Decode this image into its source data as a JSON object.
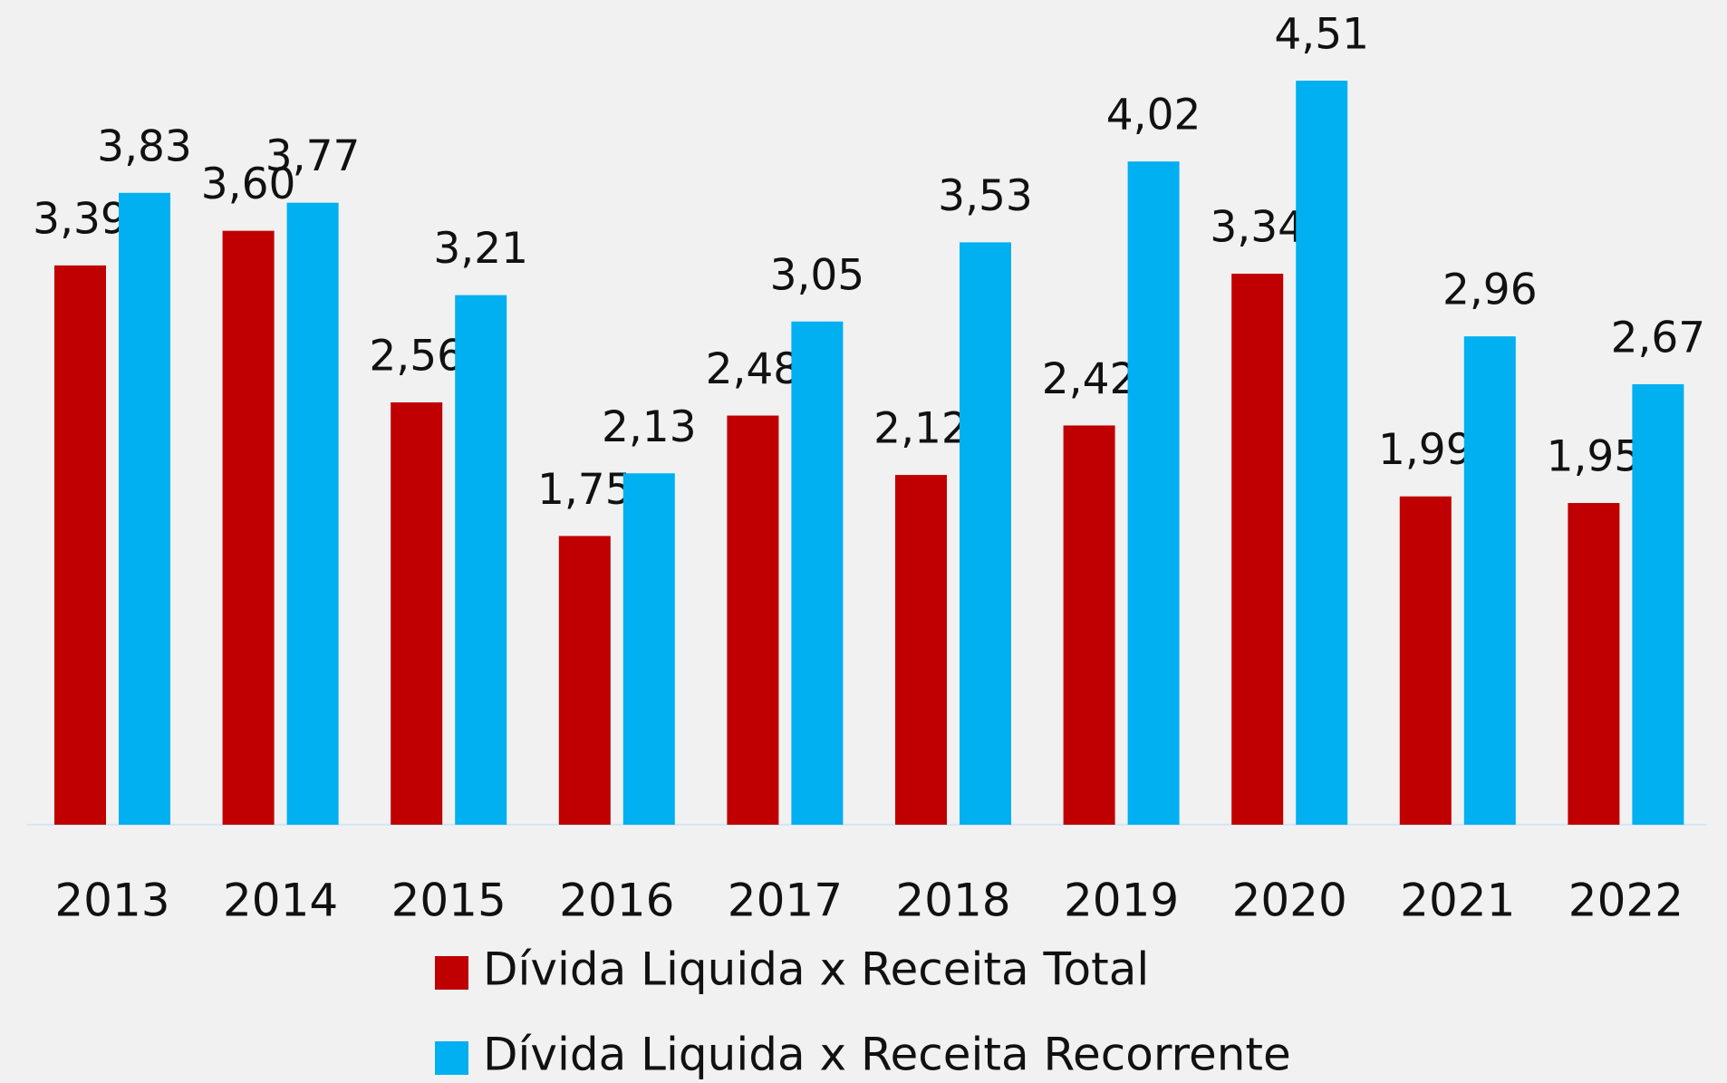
{
  "chart_data": {
    "type": "bar",
    "categories": [
      "2013",
      "2014",
      "2015",
      "2016",
      "2017",
      "2018",
      "2019",
      "2020",
      "2021",
      "2022"
    ],
    "series": [
      {
        "name": "Dívida Liquida x Receita Total",
        "color": "#c00000",
        "values": [
          3.39,
          3.6,
          2.56,
          1.75,
          2.48,
          2.12,
          2.42,
          3.34,
          1.99,
          1.95
        ],
        "value_labels": [
          "3,39",
          "3,60",
          "2,56",
          "1,75",
          "2,48",
          "2,12",
          "2,42",
          "3,34",
          "1,99",
          "1,95"
        ]
      },
      {
        "name": "Dívida Liquida x Receita Recorrente",
        "color": "#00b0f0",
        "values": [
          3.83,
          3.77,
          3.21,
          2.13,
          3.05,
          3.53,
          4.02,
          4.51,
          2.96,
          2.67
        ],
        "value_labels": [
          "3,83",
          "3,77",
          "3,21",
          "2,13",
          "3,05",
          "3,53",
          "4,02",
          "4,51",
          "2,96",
          "2,67"
        ]
      }
    ],
    "legend": "bottom"
  }
}
